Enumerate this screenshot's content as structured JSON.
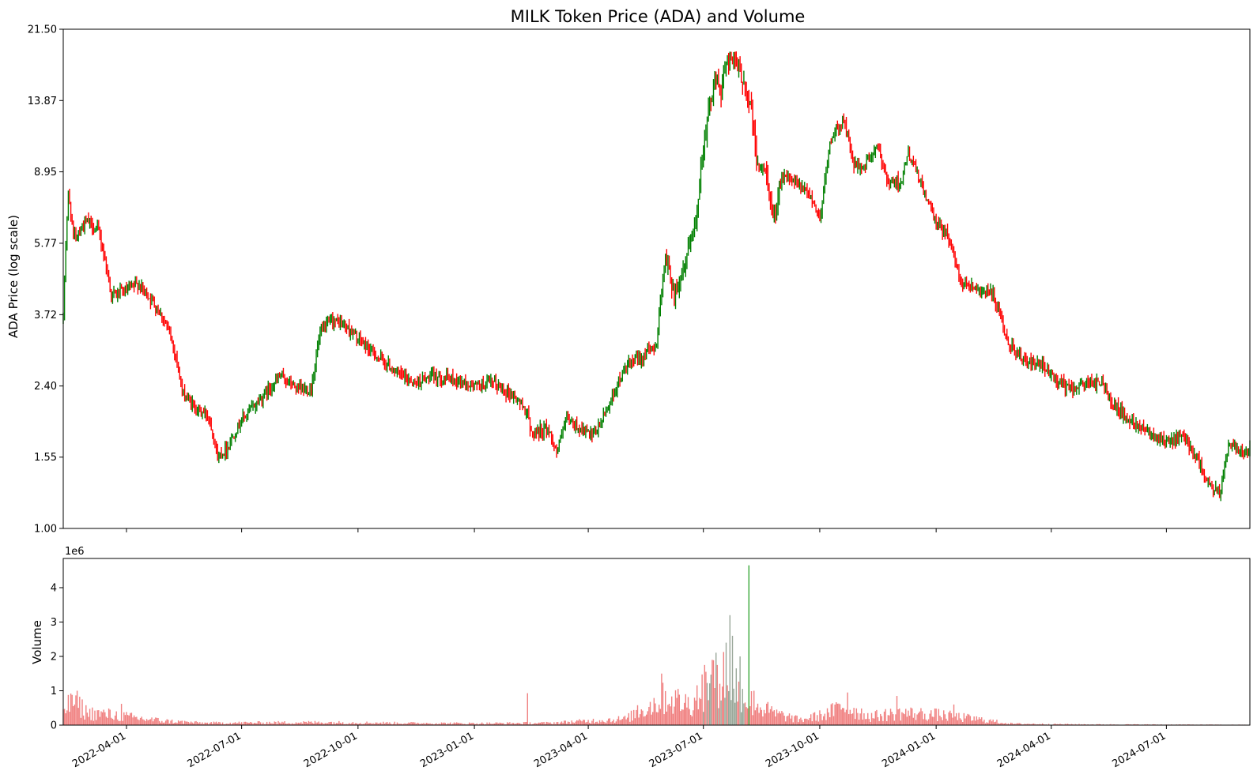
{
  "chart_data": [
    {
      "type": "candlestick",
      "title": "MILK Token Price (ADA) and Volume",
      "ylabel": "ADA Price (log scale)",
      "yscale": "log",
      "ylim": [
        1.0,
        21.5
      ],
      "y_ticks": [
        "1.00",
        "1.55",
        "2.40",
        "3.72",
        "5.77",
        "8.95",
        "13.87",
        "21.50"
      ],
      "xlim": [
        "2022-02-10",
        "2024-09-05"
      ],
      "up_color": "#008000",
      "down_color": "#ff0000",
      "price_keypoints": [
        [
          "2022-02-10",
          3.6
        ],
        [
          "2022-02-14",
          7.8
        ],
        [
          "2022-02-18",
          6.0
        ],
        [
          "2022-03-01",
          6.6
        ],
        [
          "2022-03-10",
          6.2
        ],
        [
          "2022-03-20",
          4.2
        ],
        [
          "2022-04-01",
          4.3
        ],
        [
          "2022-04-10",
          4.5
        ],
        [
          "2022-04-20",
          4.1
        ],
        [
          "2022-05-01",
          3.6
        ],
        [
          "2022-05-10",
          2.9
        ],
        [
          "2022-05-15",
          2.3
        ],
        [
          "2022-05-25",
          2.1
        ],
        [
          "2022-06-05",
          2.0
        ],
        [
          "2022-06-12",
          1.55
        ],
        [
          "2022-06-20",
          1.65
        ],
        [
          "2022-07-01",
          1.95
        ],
        [
          "2022-07-15",
          2.2
        ],
        [
          "2022-08-01",
          2.55
        ],
        [
          "2022-08-15",
          2.35
        ],
        [
          "2022-08-25",
          2.35
        ],
        [
          "2022-09-01",
          3.3
        ],
        [
          "2022-09-10",
          3.6
        ],
        [
          "2022-09-20",
          3.5
        ],
        [
          "2022-10-01",
          3.2
        ],
        [
          "2022-10-15",
          2.9
        ],
        [
          "2022-11-01",
          2.6
        ],
        [
          "2022-11-15",
          2.45
        ],
        [
          "2022-12-01",
          2.55
        ],
        [
          "2022-12-15",
          2.5
        ],
        [
          "2023-01-01",
          2.4
        ],
        [
          "2023-01-15",
          2.45
        ],
        [
          "2023-02-01",
          2.25
        ],
        [
          "2023-02-12",
          2.05
        ],
        [
          "2023-02-14",
          1.8
        ],
        [
          "2023-02-28",
          1.85
        ],
        [
          "2023-03-07",
          1.6
        ],
        [
          "2023-03-15",
          1.95
        ],
        [
          "2023-03-25",
          1.85
        ],
        [
          "2023-04-05",
          1.75
        ],
        [
          "2023-04-15",
          2.05
        ],
        [
          "2023-05-01",
          2.7
        ],
        [
          "2023-05-15",
          2.9
        ],
        [
          "2023-05-25",
          3.1
        ],
        [
          "2023-06-01",
          5.3
        ],
        [
          "2023-06-08",
          4.2
        ],
        [
          "2023-06-15",
          4.9
        ],
        [
          "2023-06-25",
          6.4
        ],
        [
          "2023-07-01",
          10.5
        ],
        [
          "2023-07-10",
          16.0
        ],
        [
          "2023-07-15",
          14.5
        ],
        [
          "2023-07-20",
          18.5
        ],
        [
          "2023-07-25",
          17.5
        ],
        [
          "2023-08-01",
          16.0
        ],
        [
          "2023-08-08",
          13.0
        ],
        [
          "2023-08-12",
          9.5
        ],
        [
          "2023-08-20",
          8.8
        ],
        [
          "2023-08-25",
          6.6
        ],
        [
          "2023-09-01",
          8.8
        ],
        [
          "2023-09-15",
          8.2
        ],
        [
          "2023-09-25",
          7.6
        ],
        [
          "2023-10-01",
          6.6
        ],
        [
          "2023-10-10",
          11.0
        ],
        [
          "2023-10-20",
          12.3
        ],
        [
          "2023-10-28",
          9.3
        ],
        [
          "2023-11-05",
          9.2
        ],
        [
          "2023-11-15",
          10.4
        ],
        [
          "2023-11-25",
          8.3
        ],
        [
          "2023-12-05",
          8.5
        ],
        [
          "2023-12-10",
          10.0
        ],
        [
          "2023-12-25",
          7.5
        ],
        [
          "2024-01-01",
          6.5
        ],
        [
          "2024-01-10",
          6.1
        ],
        [
          "2024-01-20",
          4.6
        ],
        [
          "2024-02-01",
          4.4
        ],
        [
          "2024-02-15",
          4.2
        ],
        [
          "2024-02-25",
          3.2
        ],
        [
          "2024-03-10",
          2.8
        ],
        [
          "2024-03-25",
          2.7
        ],
        [
          "2024-04-05",
          2.5
        ],
        [
          "2024-04-15",
          2.35
        ],
        [
          "2024-05-01",
          2.45
        ],
        [
          "2024-05-10",
          2.45
        ],
        [
          "2024-05-20",
          2.15
        ],
        [
          "2024-06-01",
          1.95
        ],
        [
          "2024-06-15",
          1.85
        ],
        [
          "2024-07-01",
          1.7
        ],
        [
          "2024-07-15",
          1.75
        ],
        [
          "2024-07-25",
          1.55
        ],
        [
          "2024-08-01",
          1.35
        ],
        [
          "2024-08-12",
          1.22
        ],
        [
          "2024-08-15",
          1.42
        ],
        [
          "2024-08-20",
          1.7
        ],
        [
          "2024-09-01",
          1.6
        ],
        [
          "2024-09-05",
          1.62
        ]
      ]
    },
    {
      "type": "bar",
      "ylabel": "Volume",
      "y_multiplier": "1e6",
      "ylim": [
        0,
        4.85
      ],
      "y_ticks": [
        "0",
        "1",
        "2",
        "3",
        "4"
      ],
      "x_ticks": [
        "2022-04-01",
        "2022-07-01",
        "2022-10-01",
        "2023-01-01",
        "2023-04-01",
        "2023-07-01",
        "2023-10-01",
        "2024-01-01",
        "2024-04-01",
        "2024-07-01"
      ],
      "bar_color": "#f08080",
      "highlight_color": "#9aa89a",
      "volume_keypoints_millions": [
        [
          "2022-02-10",
          0.5
        ],
        [
          "2022-02-20",
          0.65
        ],
        [
          "2022-03-01",
          0.35
        ],
        [
          "2022-03-20",
          0.3
        ],
        [
          "2022-04-10",
          0.2
        ],
        [
          "2022-05-01",
          0.12
        ],
        [
          "2022-06-01",
          0.06
        ],
        [
          "2022-09-01",
          0.08
        ],
        [
          "2022-11-01",
          0.06
        ],
        [
          "2023-01-01",
          0.05
        ],
        [
          "2023-03-01",
          0.06
        ],
        [
          "2023-05-01",
          0.18
        ],
        [
          "2023-06-01",
          0.8
        ],
        [
          "2023-06-20",
          0.6
        ],
        [
          "2023-07-05",
          1.2
        ],
        [
          "2023-07-20",
          1.5
        ],
        [
          "2023-08-05",
          0.7
        ],
        [
          "2023-08-25",
          0.35
        ],
        [
          "2023-09-15",
          0.15
        ],
        [
          "2023-10-05",
          0.3
        ],
        [
          "2023-10-20",
          0.55
        ],
        [
          "2023-11-10",
          0.25
        ],
        [
          "2023-12-05",
          0.35
        ],
        [
          "2024-01-01",
          0.3
        ],
        [
          "2024-02-01",
          0.18
        ],
        [
          "2024-03-01",
          0.04
        ],
        [
          "2024-05-01",
          0.02
        ],
        [
          "2024-09-05",
          0.01
        ]
      ],
      "volume_spikes_millions": [
        [
          "2022-02-17",
          0.88
        ],
        [
          "2022-03-28",
          0.62
        ],
        [
          "2023-02-12",
          0.93
        ],
        [
          "2023-05-10",
          0.58
        ],
        [
          "2023-05-29",
          1.5
        ],
        [
          "2023-07-02",
          1.75
        ],
        [
          "2023-07-08",
          1.9
        ],
        [
          "2023-07-12",
          1.75
        ],
        [
          "2023-07-19",
          2.4
        ],
        [
          "2023-07-22",
          3.2
        ],
        [
          "2023-07-24",
          2.6
        ],
        [
          "2023-07-30",
          2.0
        ],
        [
          "2023-08-06",
          4.65
        ],
        [
          "2023-08-10",
          1.0
        ],
        [
          "2023-10-23",
          0.95
        ],
        [
          "2023-12-01",
          0.85
        ],
        [
          "2024-01-15",
          0.6
        ]
      ],
      "volume_spike_up": [
        "2023-07-19",
        "2023-07-22",
        "2023-07-24",
        "2023-08-06"
      ]
    }
  ]
}
